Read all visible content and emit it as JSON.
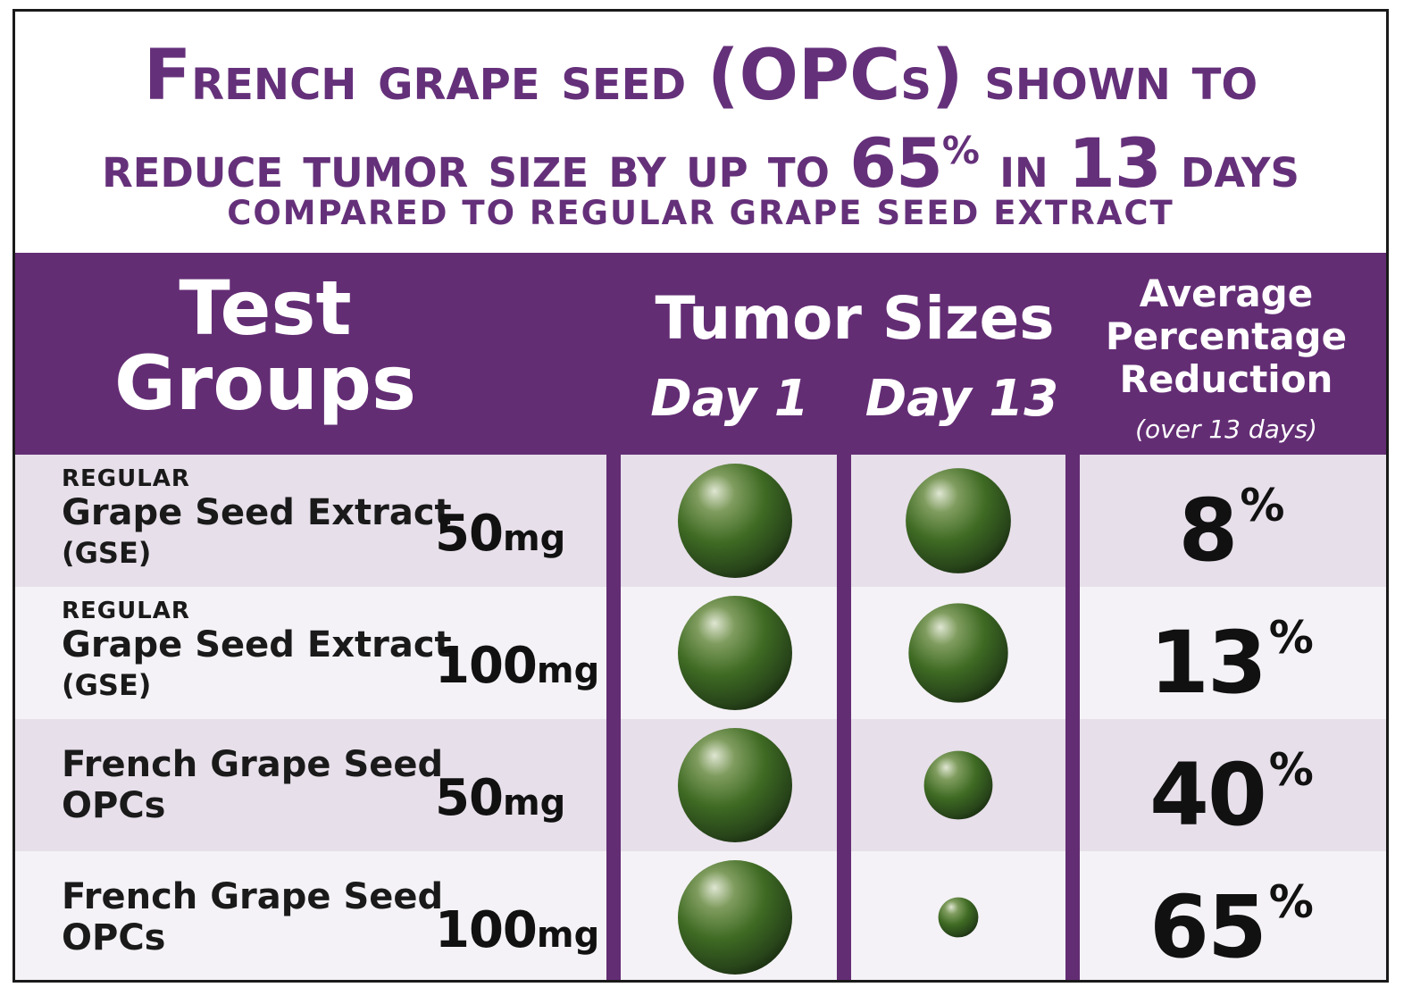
{
  "title": {
    "line1_lead": "F",
    "line1_rest": "rench grape seed",
    "line1_paren": "(OPC",
    "line1_s": "s",
    "line1_close": ")",
    "line1_tail": "shown to",
    "line2_lead": "reduce tumor size by up to",
    "line2_value": "65",
    "line2_pct": "%",
    "line2_in": "in",
    "line2_days_num": "13",
    "line2_days": "days",
    "subtitle": "COMPARED TO REGULAR GRAPE SEED EXTRACT"
  },
  "header": {
    "test_groups_line1": "Test",
    "test_groups_line2": "Groups",
    "tumor_sizes": "Tumor Sizes",
    "day1": "Day 1",
    "day13": "Day 13",
    "avg_line1": "Average",
    "avg_line2": "Percentage",
    "avg_line3": "Reduction",
    "avg_sub": "(over 13 days)"
  },
  "rows": [
    {
      "small": "REGULAR",
      "main": "Grape Seed Extract",
      "sub": "(GSE)",
      "dose_num": "50",
      "dose_unit": "mg",
      "pct": "8",
      "pct_sign": "%"
    },
    {
      "small": "REGULAR",
      "main": "Grape Seed Extract",
      "sub": "(GSE)",
      "dose_num": "100",
      "dose_unit": "mg",
      "pct": "13",
      "pct_sign": "%"
    },
    {
      "small": "",
      "main": "French Grape Seed",
      "sub": "OPCs",
      "dose_num": "50",
      "dose_unit": "mg",
      "pct": "40",
      "pct_sign": "%"
    },
    {
      "small": "",
      "main": "French Grape Seed",
      "sub": "OPCs",
      "dose_num": "100",
      "dose_unit": "mg",
      "pct": "65",
      "pct_sign": "%"
    }
  ],
  "colors": {
    "purple": "#632d74",
    "title_purple": "#65307a",
    "tumor_green": "#3e6a23",
    "row_light": "#e7dfea",
    "row_lighter": "#f4f2f6"
  },
  "chart_data": {
    "type": "table",
    "title": "French grape seed (OPCs) shown to reduce tumor size by up to 65% in 13 days",
    "subtitle": "COMPARED TO REGULAR GRAPE SEED EXTRACT",
    "columns": [
      "Test Groups",
      "Day 1",
      "Day 13",
      "Average Percentage Reduction (over 13 days)"
    ],
    "categories": [
      "Grape Seed Extract (GSE) 50mg",
      "Grape Seed Extract (GSE) 100mg",
      "French Grape Seed OPCs 50mg",
      "French Grape Seed OPCs 100mg"
    ],
    "reduction_percent": [
      8,
      13,
      40,
      65
    ],
    "relative_size_day1": [
      1,
      1,
      1,
      1
    ],
    "relative_size_day13": [
      0.92,
      0.87,
      0.6,
      0.35
    ]
  }
}
